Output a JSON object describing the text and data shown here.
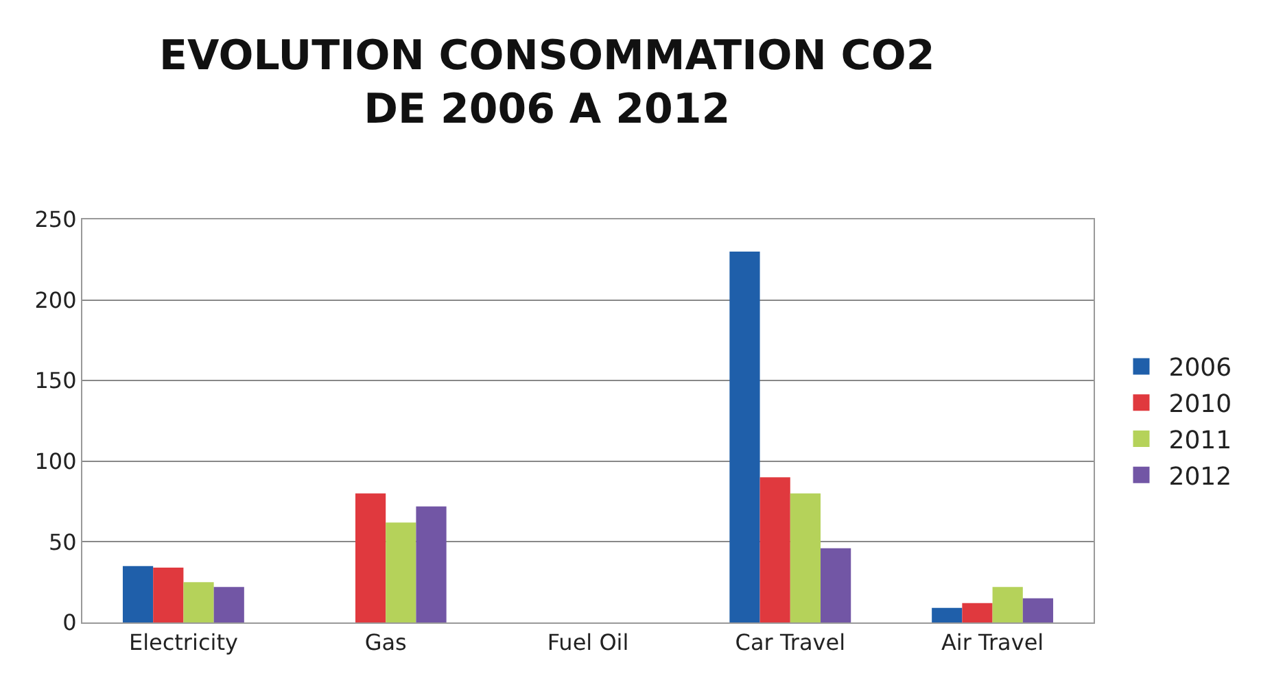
{
  "chart_data": {
    "type": "bar",
    "title": "EVOLUTION CONSOMMATION CO2\nDE 2006 A 2012",
    "categories": [
      "Electricity",
      "Gas",
      "Fuel Oil",
      "Car Travel",
      "Air Travel"
    ],
    "series": [
      {
        "name": "2006",
        "color": "#1f5faa",
        "values": [
          35,
          0,
          0,
          230,
          9
        ]
      },
      {
        "name": "2010",
        "color": "#e0393e",
        "values": [
          34,
          80,
          0,
          90,
          12
        ]
      },
      {
        "name": "2011",
        "color": "#b5d25a",
        "values": [
          25,
          62,
          0,
          80,
          22
        ]
      },
      {
        "name": "2012",
        "color": "#7256a5",
        "values": [
          22,
          72,
          0,
          46,
          15
        ]
      }
    ],
    "ylim": [
      0,
      250
    ],
    "yticks": [
      0,
      50,
      100,
      150,
      200,
      250
    ],
    "grid": "y",
    "legend": "right"
  }
}
